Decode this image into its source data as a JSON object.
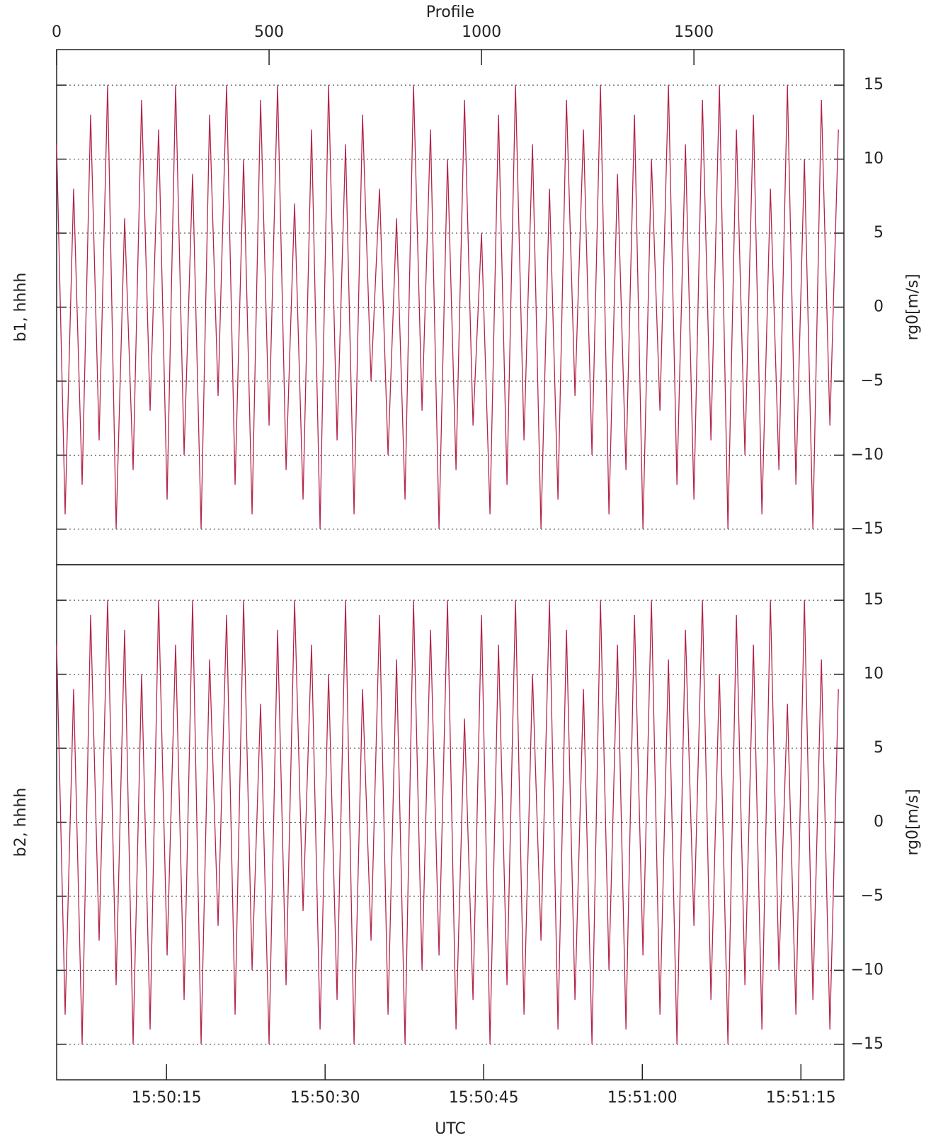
{
  "chart_data": [
    {
      "type": "line",
      "xlabel": "Profile",
      "xaxis_position": "top",
      "ylabel": "b1, hhhh",
      "y2label": "rg0[m/s]",
      "xlim": [
        0,
        1853
      ],
      "xticks": [
        0,
        500,
        1000,
        1500
      ],
      "ylim": [
        -17.4,
        17.4
      ],
      "yticks": [
        {
          "value": -15,
          "label": "−15"
        },
        {
          "value": -10,
          "label": "−10"
        },
        {
          "value": -5,
          "label": "−5"
        },
        0,
        5,
        10,
        15
      ],
      "grid": true,
      "x": [
        0,
        20,
        40,
        60,
        80,
        100,
        120,
        140,
        160,
        180,
        200,
        220,
        240,
        260,
        280,
        300,
        320,
        340,
        360,
        380,
        400,
        420,
        440,
        460,
        480,
        500,
        520,
        540,
        560,
        580,
        600,
        620,
        640,
        660,
        680,
        700,
        720,
        740,
        760,
        780,
        800,
        820,
        840,
        860,
        880,
        900,
        920,
        940,
        960,
        980,
        1000,
        1020,
        1040,
        1060,
        1080,
        1100,
        1120,
        1140,
        1160,
        1180,
        1200,
        1220,
        1240,
        1260,
        1280,
        1300,
        1320,
        1340,
        1360,
        1380,
        1400,
        1420,
        1440,
        1460,
        1480,
        1500,
        1520,
        1540,
        1560,
        1580,
        1600,
        1620,
        1640,
        1660,
        1680,
        1700,
        1720,
        1740,
        1760,
        1780,
        1800,
        1820,
        1840
      ],
      "series": [
        {
          "color": "#b3244a",
          "values": [
            11,
            -14,
            8,
            -12,
            13,
            -9,
            15,
            -15,
            6,
            -11,
            14,
            -7,
            12,
            -13,
            15,
            -10,
            9,
            -15,
            13,
            -6,
            15,
            -12,
            10,
            -14,
            14,
            -8,
            15,
            -11,
            7,
            -13,
            12,
            -15,
            15,
            -9,
            11,
            -14,
            13,
            -5,
            8,
            -10,
            6,
            -13,
            15,
            -7,
            12,
            -15,
            10,
            -11,
            14,
            -8,
            5,
            -14,
            13,
            -12,
            15,
            -9,
            11,
            -15,
            8,
            -13,
            14,
            -6,
            12,
            -10,
            15,
            -14,
            9,
            -11,
            13,
            -15,
            10,
            -7,
            15,
            -12,
            11,
            -13,
            14,
            -9,
            15,
            -15,
            12,
            -10,
            13,
            -14,
            8,
            -11,
            15,
            -12,
            10,
            -15,
            14,
            -8,
            12
          ]
        }
      ]
    },
    {
      "type": "line",
      "xlabel": "UTC",
      "xaxis_position": "bottom",
      "ylabel": "b2, hhhh",
      "y2label": "rg0[m/s]",
      "xlim": [
        0,
        1853
      ],
      "xticks": [
        {
          "value": 258.6,
          "label": "15:50:15"
        },
        {
          "value": 631.9,
          "label": "15:50:30"
        },
        {
          "value": 1005.2,
          "label": "15:50:45"
        },
        {
          "value": 1378.5,
          "label": "15:51:00"
        },
        {
          "value": 1751.8,
          "label": "15:51:15"
        }
      ],
      "ylim": [
        -17.4,
        17.4
      ],
      "yticks": [
        {
          "value": -15,
          "label": "−15"
        },
        {
          "value": -10,
          "label": "−10"
        },
        {
          "value": -5,
          "label": "−5"
        },
        0,
        5,
        10,
        15
      ],
      "grid": true,
      "x": [
        0,
        20,
        40,
        60,
        80,
        100,
        120,
        140,
        160,
        180,
        200,
        220,
        240,
        260,
        280,
        300,
        320,
        340,
        360,
        380,
        400,
        420,
        440,
        460,
        480,
        500,
        520,
        540,
        560,
        580,
        600,
        620,
        640,
        660,
        680,
        700,
        720,
        740,
        760,
        780,
        800,
        820,
        840,
        860,
        880,
        900,
        920,
        940,
        960,
        980,
        1000,
        1020,
        1040,
        1060,
        1080,
        1100,
        1120,
        1140,
        1160,
        1180,
        1200,
        1220,
        1240,
        1260,
        1280,
        1300,
        1320,
        1340,
        1360,
        1380,
        1400,
        1420,
        1440,
        1460,
        1480,
        1500,
        1520,
        1540,
        1560,
        1580,
        1600,
        1620,
        1640,
        1660,
        1680,
        1700,
        1720,
        1740,
        1760,
        1780,
        1800,
        1820,
        1840
      ],
      "series": [
        {
          "color": "#b3244a",
          "values": [
            12,
            -13,
            9,
            -15,
            14,
            -8,
            15,
            -11,
            13,
            -15,
            10,
            -14,
            15,
            -9,
            12,
            -12,
            15,
            -15,
            11,
            -7,
            14,
            -13,
            15,
            -10,
            8,
            -15,
            13,
            -11,
            15,
            -6,
            12,
            -14,
            10,
            -12,
            15,
            -15,
            9,
            -8,
            14,
            -13,
            11,
            -15,
            15,
            -10,
            13,
            -9,
            15,
            -14,
            7,
            -12,
            14,
            -15,
            12,
            -11,
            15,
            -13,
            10,
            -8,
            15,
            -14,
            13,
            -12,
            9,
            -15,
            15,
            -10,
            12,
            -14,
            14,
            -9,
            15,
            -13,
            11,
            -15,
            13,
            -7,
            15,
            -12,
            10,
            -15,
            14,
            -11,
            12,
            -14,
            15,
            -10,
            8,
            -13,
            15,
            -12,
            11,
            -14,
            9
          ]
        }
      ]
    }
  ]
}
